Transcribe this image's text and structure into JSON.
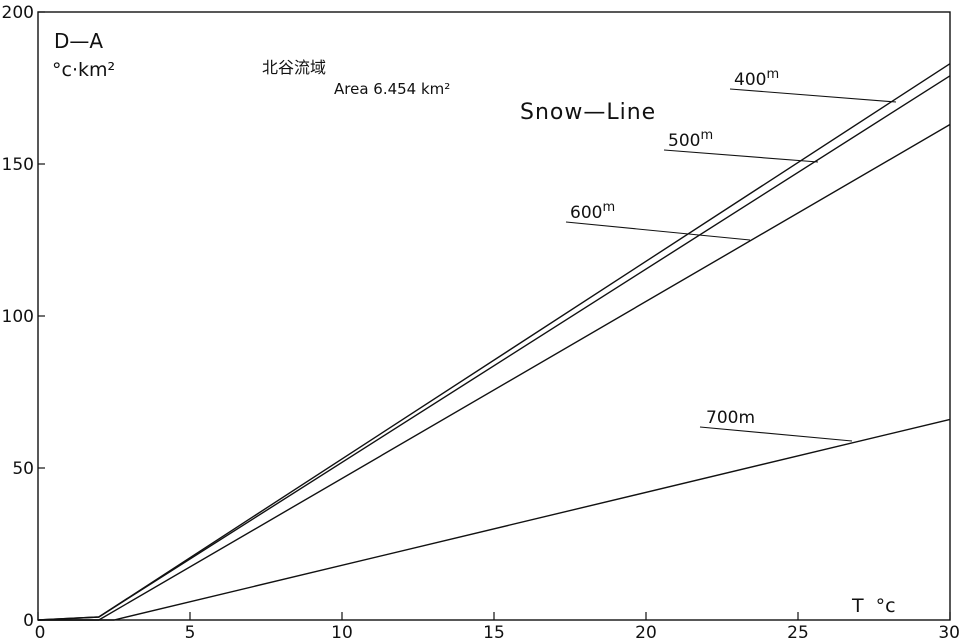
{
  "chart_data": {
    "type": "line",
    "ylabel_top": "D—A",
    "yunit": "°c·km²",
    "xlabel": "T  °c",
    "basin": "北谷流域",
    "area": "Area 6.454 km²",
    "legend_title": "Snow—Line",
    "xlim": [
      0,
      30
    ],
    "ylim": [
      0,
      200
    ],
    "xticks": [
      0,
      5,
      10,
      15,
      20,
      25,
      30
    ],
    "yticks": [
      0,
      50,
      100,
      150,
      200
    ],
    "grid": false,
    "series": [
      {
        "name": "400m",
        "x": [
          0,
          2,
          30
        ],
        "y": [
          0,
          1,
          183
        ]
      },
      {
        "name": "500m",
        "x": [
          0,
          2,
          30
        ],
        "y": [
          0,
          1,
          179
        ]
      },
      {
        "name": "600m",
        "x": [
          0,
          2,
          30
        ],
        "y": [
          0,
          0,
          163
        ]
      },
      {
        "name": "700m",
        "x": [
          0,
          2.5,
          30
        ],
        "y": [
          0,
          0,
          66
        ]
      }
    ],
    "series_labels": [
      {
        "text": "400",
        "unit": "m"
      },
      {
        "text": "500",
        "unit": "m"
      },
      {
        "text": "600",
        "unit": "m"
      },
      {
        "text": "700m",
        "unit": ""
      }
    ]
  }
}
